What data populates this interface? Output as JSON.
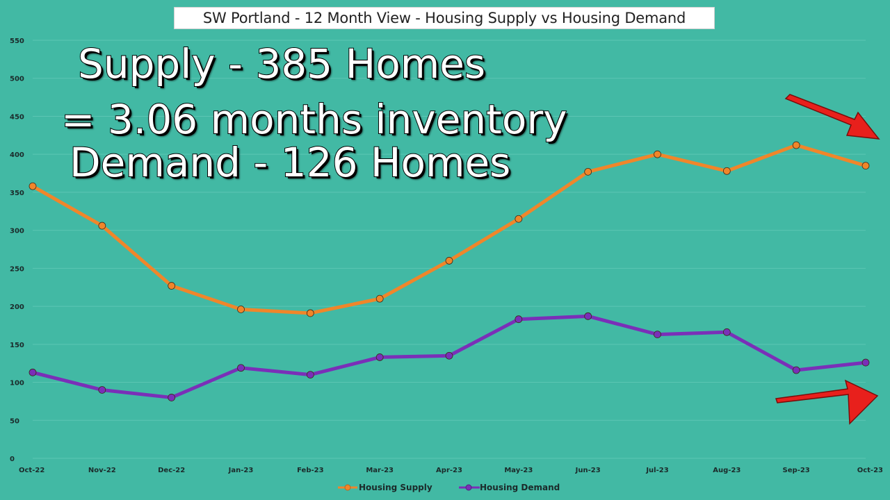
{
  "title": "SW Portland - 12 Month View - Housing Supply vs Housing Demand",
  "overlay": {
    "line1": "Supply - 385 Homes",
    "line2": "= 3.06 months inventory",
    "line3": "Demand - 126 Homes"
  },
  "colors": {
    "background": "#42b9a4",
    "supply": "#f0862a",
    "demand": "#7a2fb8",
    "arrow": "#e8201c",
    "grid": "#5cc6b3"
  },
  "chart_data": {
    "type": "line",
    "title": "SW Portland - 12 Month View - Housing Supply vs Housing Demand",
    "categories": [
      "Oct-22",
      "Nov-22",
      "Dec-22",
      "Jan-23",
      "Feb-23",
      "Mar-23",
      "Apr-23",
      "May-23",
      "Jun-23",
      "Jul-23",
      "Aug-23",
      "Sep-23",
      "Oct-23"
    ],
    "series": [
      {
        "name": "Housing Supply",
        "color": "#f0862a",
        "values": [
          358,
          306,
          227,
          196,
          191,
          210,
          260,
          315,
          377,
          400,
          378,
          412,
          385
        ]
      },
      {
        "name": "Housing Demand",
        "color": "#7a2fb8",
        "values": [
          113,
          90,
          80,
          119,
          110,
          133,
          135,
          183,
          187,
          163,
          166,
          116,
          126
        ]
      }
    ],
    "yticks": [
      "0",
      "50",
      "100",
      "150",
      "200",
      "250",
      "300",
      "350",
      "400",
      "450",
      "500",
      "550"
    ],
    "ylim": [
      0,
      550
    ],
    "grid": true,
    "legend": "bottom-center",
    "annotations": [
      "arrow-down-right-supply",
      "arrow-up-right-demand"
    ]
  }
}
